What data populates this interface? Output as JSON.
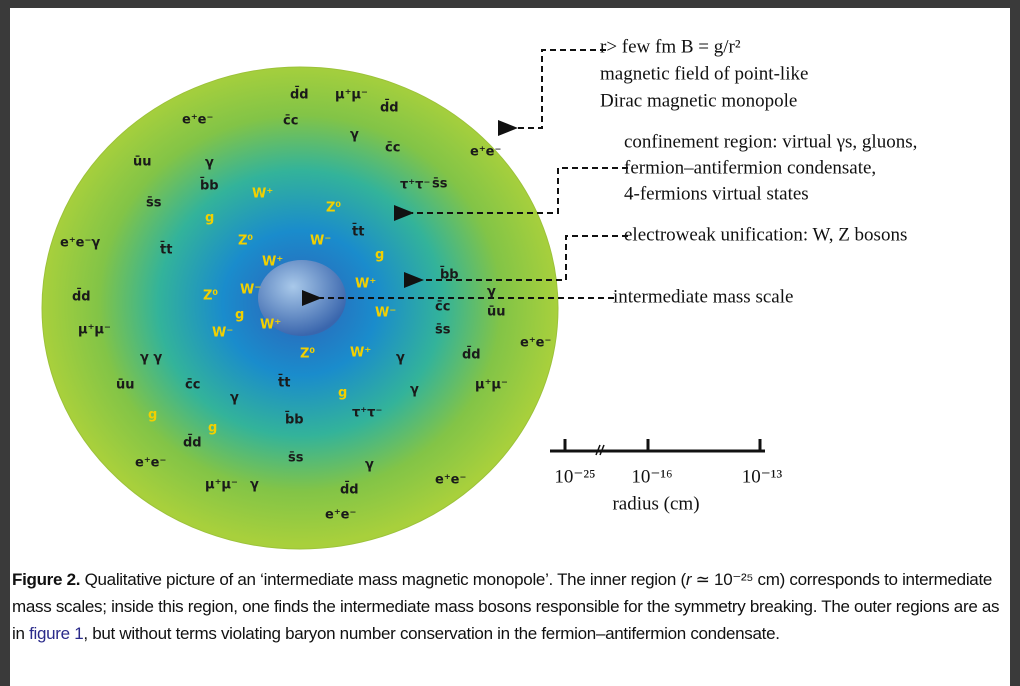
{
  "figure": {
    "particle_labels": [
      "e⁺e⁻",
      "d̄d",
      "μ⁺μ⁻",
      "d̄d",
      "c̄c",
      "γ",
      "c̄c",
      "e⁺e⁻",
      "ūu",
      "γ",
      "b̄b",
      "τ⁺τ⁻",
      "s̄s",
      "s̄s",
      "e⁺e⁻γ",
      "t̄t",
      "d̄d",
      "μ⁺μ⁻",
      "γ  γ",
      "ūu",
      "c̄c",
      "γ",
      "g",
      "e⁺e⁻",
      "d̄d",
      "g",
      "μ⁺μ⁻",
      "γ",
      "s̄s",
      "b̄b",
      "t̄t",
      "e⁺e⁻",
      "d̄d",
      "γ",
      "e⁺e⁻",
      "μ⁺μ⁻",
      "γ",
      "τ⁺τ⁻",
      "g",
      "γ",
      "d̄d",
      "e⁺e⁻",
      "s̄s",
      "c̄c",
      "ūu",
      "γ",
      "b̄b",
      "W⁺",
      "Z⁰",
      "g",
      "Z⁰",
      "W⁻",
      "t̄t",
      "g",
      "W⁺",
      "Z⁰",
      "W⁻",
      "g",
      "W⁻",
      "W⁺",
      "Z⁰",
      "W⁺",
      "W⁺",
      "W⁻"
    ],
    "annotations": [
      [
        "r> few fm B = g/r²",
        "magnetic field of point-like",
        "Dirac magnetic monopole"
      ],
      [
        "confinement region: virtual γs, gluons,",
        "fermion–antifermion condensate,",
        "4-fermions virtual states"
      ],
      [
        "electroweak unification: W, Z bosons"
      ],
      [
        "intermediate mass scale"
      ]
    ],
    "scale": {
      "ticks": [
        "10⁻²⁵",
        "10⁻¹⁶",
        "10⁻¹³"
      ],
      "label": "radius (cm)"
    }
  },
  "caption": {
    "label": "Figure 2.",
    "text_1": "Qualitative picture of an ‘intermediate mass magnetic monopole’. The inner region (",
    "symbol": "r",
    "text_2": " ≃ 10⁻²⁵ cm) corresponds to intermediate mass scales; inside this region, one finds the intermediate mass bosons responsible for the symmetry breaking. The outer regions are as in ",
    "link": "figure 1",
    "text_3": ", but without terms violating baryon number conservation in the fermion–antifermion condensate."
  }
}
